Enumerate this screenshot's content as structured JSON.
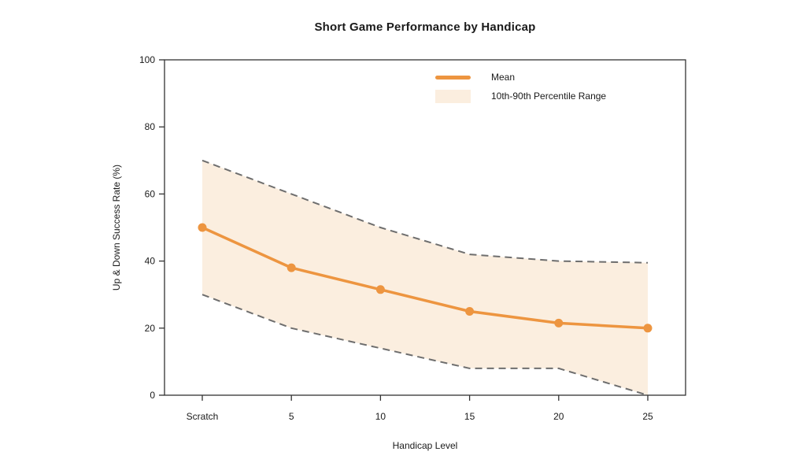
{
  "header": {
    "title": "Short Game Performance by Handicap"
  },
  "axes": {
    "ylabel": "Up & Down Success Rate (%)",
    "xlabel": "Handicap Level"
  },
  "legend": {
    "mean_label": "Mean",
    "band_label": "10th-90th Percentile Range"
  },
  "colors": {
    "mean_line": "#ED9540",
    "band_fill": "#FBEEDF",
    "band_edge": "#6E6E6E",
    "axis": "#333333",
    "text": "#1a1a1a"
  },
  "chart_data": {
    "type": "line",
    "title": "Short Game Performance by Handicap",
    "xlabel": "Handicap Level",
    "ylabel": "Up & Down Success Rate (%)",
    "categories": [
      "Scratch",
      "5",
      "10",
      "15",
      "20",
      "25"
    ],
    "series": [
      {
        "name": "Mean",
        "values": [
          50,
          38,
          31.5,
          25,
          21.5,
          20
        ]
      },
      {
        "name": "90th Percentile",
        "values": [
          70,
          60,
          50,
          42,
          40,
          39.5
        ]
      },
      {
        "name": "10th Percentile",
        "values": [
          30,
          20,
          14,
          8,
          8,
          0
        ]
      }
    ],
    "band": {
      "label": "10th-90th Percentile Range",
      "upper": [
        70,
        60,
        50,
        42,
        40,
        39.5
      ],
      "lower": [
        30,
        20,
        14,
        8,
        8,
        0
      ]
    },
    "yticks": [
      0,
      20,
      40,
      60,
      80,
      100
    ],
    "ylim": [
      0,
      100
    ],
    "legend_position": "upper right inside",
    "grid": false
  }
}
